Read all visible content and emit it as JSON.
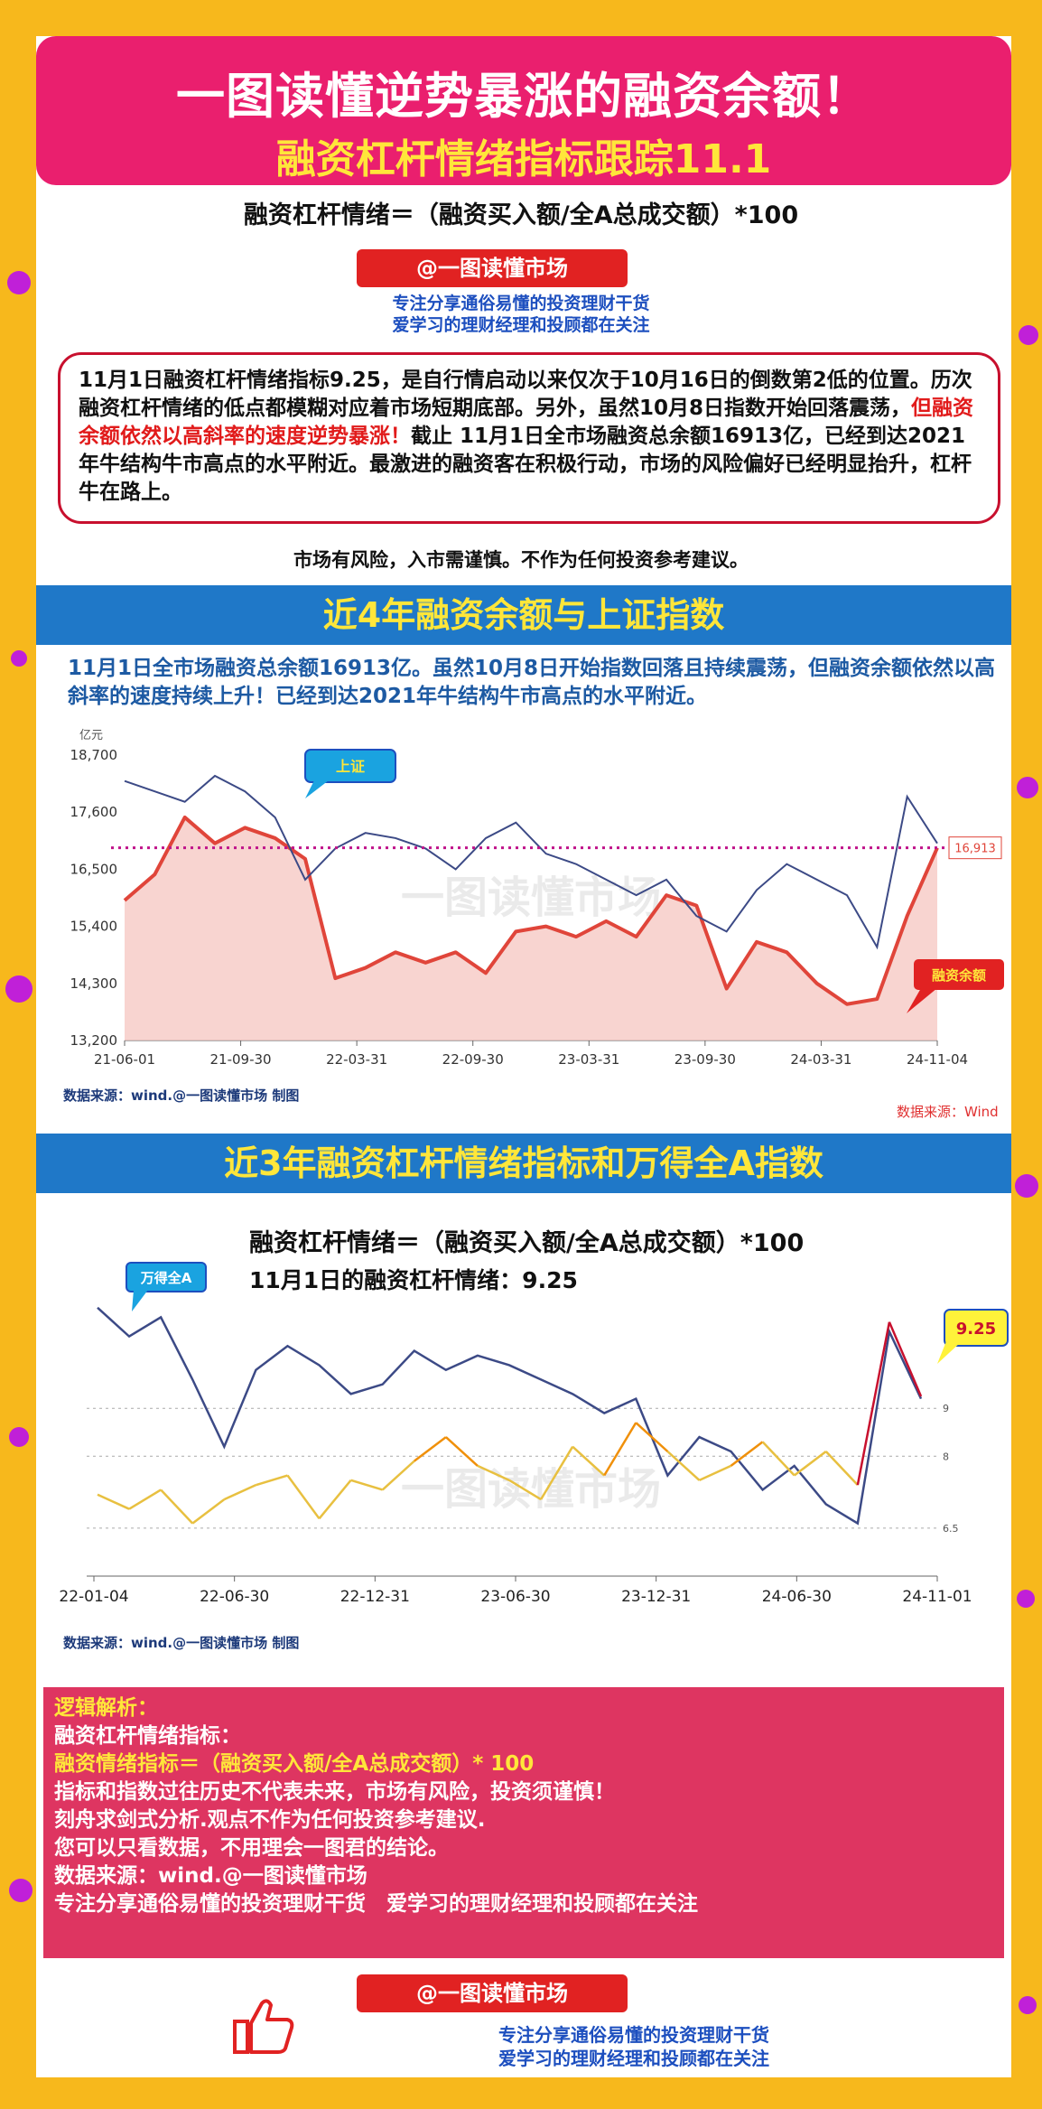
{
  "header": {
    "title": "一图读懂逆势暴涨的融资余额！",
    "subtitle": "融资杠杆情绪指标跟踪11.1"
  },
  "formula": "融资杠杆情绪＝（融资买入额/全A总成交额）*100",
  "brand": {
    "tag": "@一图读懂市场",
    "slogan_line1": "专注分享通俗易懂的投资理财干货",
    "slogan_line2": "爱学习的理财经理和投顾都在关注"
  },
  "summary": {
    "part1": "11月1日融资杠杆情绪指标9.25，是自行情启动以来仅次于10月16日的倒数第2低的位置。历次融资杠杆情绪的低点都模糊对应着市场短期底部。另外，虽然10月8日指数开始回落震荡，",
    "highlight": "但融资余额依然以高斜率的速度逆势暴涨！",
    "part2": "截止 11月1日全市场融资总余额16913亿，已经到达2021年牛结构牛市高点的水平附近。最激进的融资客在积极行动，市场的风险偏好已经明显抬升，杠杆牛在路上。"
  },
  "risk_note": "市场有风险，入市需谨慎。不作为任何投资参考建议。",
  "section1": {
    "title": "近4年融资余额与上证指数",
    "desc": "11月1日全市场融资总余额16913亿。虽然10月8日开始指数回落且持续震荡，但融资余额依然以高斜率的速度持续上升！已经到达2021年牛结构牛市高点的水平附近。",
    "source_left": "数据来源：wind.@一图读懂市场 制图",
    "source_right": "数据来源：Wind",
    "watermark": "一图读懂市场"
  },
  "section2": {
    "title": "近3年融资杠杆情绪指标和万得全A指数",
    "formula": "融资杠杆情绪＝（融资买入额/全A总成交额）*100",
    "latest": "11月1日的融资杠杆情绪：9.25",
    "source_left": "数据来源：wind.@一图读懂市场 制图",
    "watermark": "一图读懂市场"
  },
  "analysis": {
    "heading": "逻辑解析：",
    "line1": "融资杠杆情绪指标：",
    "line2": "融资情绪指标＝（融资买入额/全A总成交额）* 100",
    "line3": "指标和指数过往历史不代表未来，市场有风险，投资须谨慎！",
    "line4": "刻舟求剑式分析.观点不作为任何投资参考建议.",
    "line5": "您可以只看数据，不用理会一图君的结论。",
    "line6": "数据来源：wind.@一图读懂市场",
    "line7": "专注分享通俗易懂的投资理财干货　爱学习的理财经理和投顾都在关注"
  },
  "footer": {
    "tag": "@一图读懂市场",
    "slogan_line1": "专注分享通俗易懂的投资理财干货",
    "slogan_line2": "爱学习的理财经理和投顾都在关注"
  },
  "colors": {
    "accent_pink": "#ea1f6e",
    "band_blue": "#1f78c8",
    "title_yellow": "#ffe63a",
    "margin_red": "#e0453a",
    "index_blue": "#3c4a86"
  },
  "chart_data": [
    {
      "type": "line",
      "ylabel": "亿元",
      "yticks": [
        13200,
        14300,
        15400,
        16500,
        17600,
        18700
      ],
      "ytick_labels": [
        "13,200",
        "14,300",
        "15,400",
        "16,500",
        "17,600",
        "18,700"
      ],
      "ylim": [
        13200,
        18700
      ],
      "xticks": [
        "21-06-01",
        "21-09-30",
        "22-03-31",
        "22-09-30",
        "23-03-31",
        "23-09-30",
        "24-03-31",
        "24-11-04"
      ],
      "reference_line": {
        "value": 16913,
        "label": "16,913"
      },
      "series": [
        {
          "name": "融资余额",
          "values": [
            15900,
            16400,
            17500,
            17000,
            17300,
            17100,
            16700,
            14400,
            14600,
            14900,
            14700,
            14900,
            14500,
            15300,
            15400,
            15200,
            15500,
            15200,
            16000,
            15800,
            14200,
            15100,
            14900,
            14300,
            13900,
            14000,
            15600,
            16913
          ]
        },
        {
          "name": "上证",
          "values": [
            18200,
            18000,
            17800,
            18300,
            18000,
            17500,
            16300,
            16900,
            17200,
            17100,
            16900,
            16500,
            17100,
            17400,
            16800,
            16600,
            16300,
            16000,
            16300,
            15600,
            15300,
            16100,
            16600,
            16300,
            16000,
            15000,
            17900,
            17000
          ]
        }
      ],
      "annotations": [
        "上证",
        "融资余额"
      ]
    },
    {
      "type": "line",
      "xticks": [
        "22-01-04",
        "22-06-30",
        "22-12-31",
        "23-06-30",
        "23-12-31",
        "24-06-30",
        "24-11-01"
      ],
      "reference_lines": [
        {
          "value": 9,
          "label": "9"
        },
        {
          "value": 8,
          "label": "8"
        },
        {
          "value": 6.5,
          "label": "6.5"
        }
      ],
      "ylim": [
        5.5,
        12
      ],
      "series": [
        {
          "name": "万得全A",
          "values": [
            11.1,
            10.5,
            10.9,
            9.6,
            8.2,
            9.8,
            10.3,
            9.9,
            9.3,
            9.5,
            10.2,
            9.8,
            10.1,
            9.9,
            9.6,
            9.3,
            8.9,
            9.2,
            7.6,
            8.4,
            8.1,
            7.3,
            7.8,
            7.0,
            6.6,
            10.6,
            9.2
          ]
        },
        {
          "name": "融资杠杆情绪",
          "values": [
            7.2,
            6.9,
            7.3,
            6.6,
            7.1,
            7.4,
            7.6,
            6.7,
            7.5,
            7.3,
            7.9,
            8.4,
            7.8,
            7.5,
            7.1,
            8.2,
            7.6,
            8.7,
            8.1,
            7.5,
            7.8,
            8.3,
            7.6,
            8.1,
            7.4,
            10.8,
            9.25
          ]
        }
      ],
      "annotations": [
        "万得全A",
        "9.25"
      ]
    }
  ]
}
